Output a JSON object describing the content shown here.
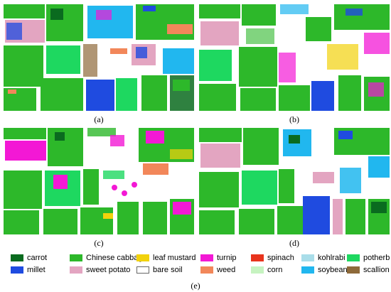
{
  "panels": [
    {
      "caption": "(a)"
    },
    {
      "caption": "(b)"
    },
    {
      "caption": "(c)"
    },
    {
      "caption": "(d)"
    }
  ],
  "legend": {
    "caption": "(e)",
    "items": [
      {
        "label": "carrot",
        "color": "#0a6b1f",
        "icon": "legend-swatch-carrot"
      },
      {
        "label": "Chinese cabbage",
        "color": "#2db82a",
        "icon": "legend-swatch-chinese-cabbage"
      },
      {
        "label": "leaf mustard",
        "color": "#f2d20c",
        "icon": "legend-swatch-leaf-mustard"
      },
      {
        "label": "turnip",
        "color": "#f318d5",
        "icon": "legend-swatch-turnip"
      },
      {
        "label": "spinach",
        "color": "#e8341d",
        "icon": "legend-swatch-spinach"
      },
      {
        "label": "kohlrabi",
        "color": "#a9dde9",
        "icon": "legend-swatch-kohlrabi"
      },
      {
        "label": "potherb",
        "color": "#1ed860",
        "icon": "legend-swatch-potherb"
      },
      {
        "label": "millet",
        "color": "#1f4be0",
        "icon": "legend-swatch-millet"
      },
      {
        "label": "sweet potato",
        "color": "#e3a5c1",
        "icon": "legend-swatch-sweet-potato"
      },
      {
        "label": "bare soil",
        "color": "#ffffff",
        "icon": "legend-swatch-bare-soil"
      },
      {
        "label": "weed",
        "color": "#f2875a",
        "icon": "legend-swatch-weed"
      },
      {
        "label": "corn",
        "color": "#c6f3c0",
        "icon": "legend-swatch-corn"
      },
      {
        "label": "soybean",
        "color": "#21b7ef",
        "icon": "legend-swatch-soybean"
      },
      {
        "label": "scallion",
        "color": "#8e6a3a",
        "icon": "legend-swatch-scallion"
      }
    ]
  }
}
